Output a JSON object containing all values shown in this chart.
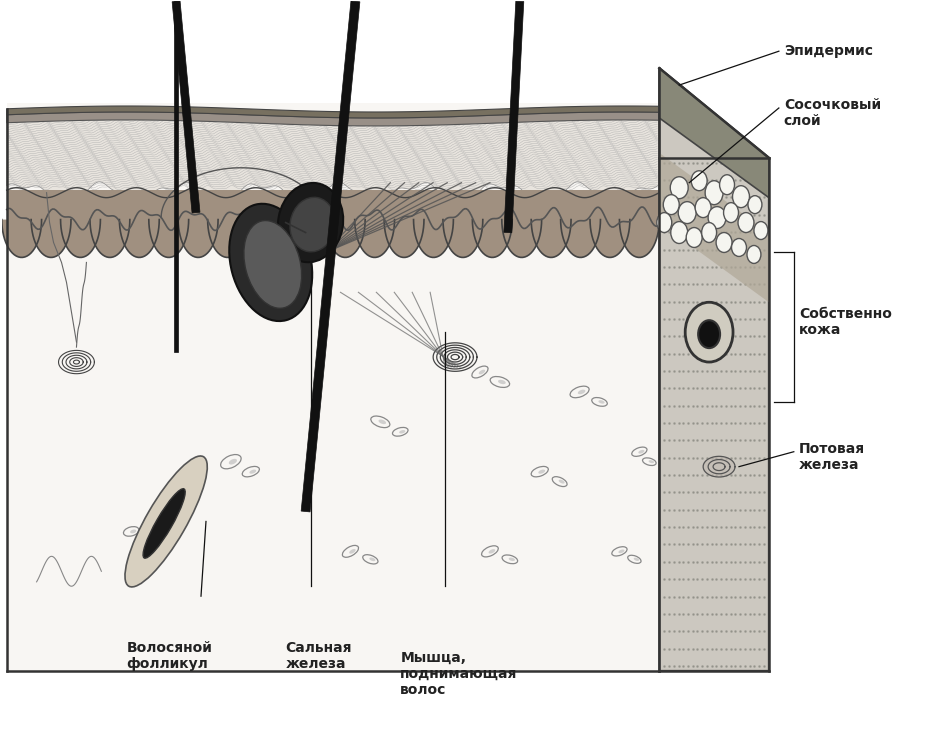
{
  "bg_color": "#ffffff",
  "skin_bg": "#f5f3f0",
  "epidermis_color": "#d0c8c0",
  "epidermis_dark": "#888880",
  "papillary_color": "#b0a898",
  "dermis_color": "#f0ede8",
  "right_face_color": "#c8c0b8",
  "hair_color": "#111111",
  "dark_structure": "#1a1a1a",
  "medium_gray": "#555555",
  "line_color": "#222222",
  "text_color": "#111111",
  "label_fontsize": 10,
  "label_fontweight": "bold",
  "annotation_lw": 0.9,
  "labels": {
    "epidermis": "Эпидермис",
    "papillary": "Сосочковый\nслой",
    "dermis": "Собственно\nкожа",
    "sweat": "Потовая\nжелеза",
    "follicle": "Волосяной\nфолликул",
    "sebaceous": "Сальная\nжелеза",
    "muscle": "Мышца,\nподнимающая\nволос"
  }
}
